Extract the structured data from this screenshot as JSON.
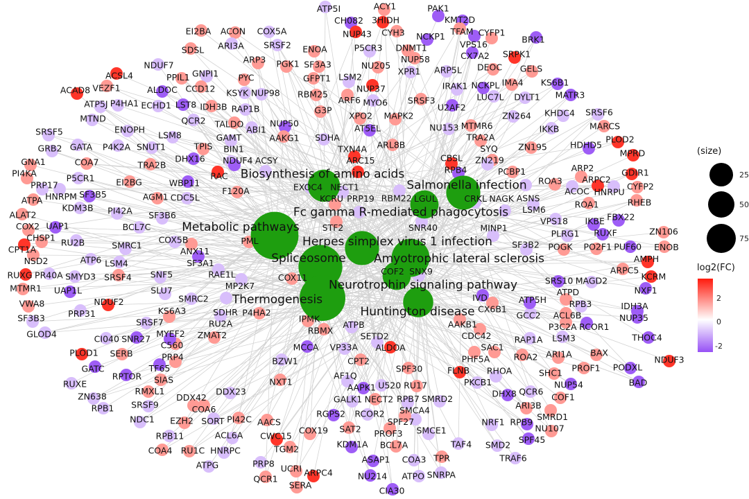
{
  "legend": {
    "size_title": "(size)",
    "size_values": [
      "25",
      "50",
      "75"
    ],
    "color_title": "log2(FC)",
    "color_ticks": [
      "2",
      "0",
      "-2"
    ],
    "color_low": "#9650F5",
    "color_mid": "#FFFFFF",
    "color_high": "#FF1A0D"
  },
  "colors": {
    "edge": "#D3D3D3",
    "category_node": "#1E9E0F"
  },
  "categories": [
    {
      "label": "Biosynthesis of amino acids",
      "size": 40
    },
    {
      "label": "Salmonella infection",
      "size": 45
    },
    {
      "label": "Fc gamma R-mediated phagocytosis",
      "size": 30
    },
    {
      "label": "Metabolic pathways",
      "size": 80
    },
    {
      "label": "Herpes simplex virus 1 infection",
      "size": 45
    },
    {
      "label": "Spliceosome",
      "size": 70
    },
    {
      "label": "Amyotrophic lateral sclerosis",
      "size": 55
    },
    {
      "label": "Neurotrophin signaling pathway",
      "size": 30
    },
    {
      "label": "Thermogenesis",
      "size": 75
    },
    {
      "label": "Huntington disease",
      "size": 35
    }
  ],
  "genes": [
    {
      "label": "ATP5I",
      "fc": -1
    },
    {
      "label": "ACY1",
      "fc": 1.5
    },
    {
      "label": "CH082",
      "fc": -2.5
    },
    {
      "label": "3HIDH",
      "fc": 3
    },
    {
      "label": "PAK1",
      "fc": -2.5
    },
    {
      "label": "KMT2D",
      "fc": -2.5
    },
    {
      "label": "TFAM",
      "fc": 1.5
    },
    {
      "label": "VPS16",
      "fc": -2.5
    },
    {
      "label": "CYH3",
      "fc": 1.5
    },
    {
      "label": "NUP43",
      "fc": 3
    },
    {
      "label": "P5CR3",
      "fc": -1
    },
    {
      "label": "DNMT1",
      "fc": 1.5
    },
    {
      "label": "ENOA",
      "fc": 1.5
    },
    {
      "label": "ACON",
      "fc": 1.5
    },
    {
      "label": "COX5A",
      "fc": -1
    },
    {
      "label": "SRSF2",
      "fc": -1
    },
    {
      "label": "EI2BA",
      "fc": 1.5
    },
    {
      "label": "SDSL",
      "fc": 1.5
    },
    {
      "label": "ARI3A",
      "fc": -1
    },
    {
      "label": "ARP3",
      "fc": 1.5
    },
    {
      "label": "PGK1",
      "fc": 1.5
    },
    {
      "label": "SF3A3",
      "fc": 1.5
    },
    {
      "label": "NCKP1",
      "fc": -2.5
    },
    {
      "label": "NUP58",
      "fc": 1.5
    },
    {
      "label": "NU205",
      "fc": 1.5
    },
    {
      "label": "CX7A2",
      "fc": -2.5
    },
    {
      "label": "CYFP1",
      "fc": 1.5
    },
    {
      "label": "BRK1",
      "fc": -2.5
    },
    {
      "label": "SRPK1",
      "fc": 3
    },
    {
      "label": "GELS",
      "fc": 1.5
    },
    {
      "label": "DEOC",
      "fc": 1.5
    },
    {
      "label": "ARP5L",
      "fc": -1
    },
    {
      "label": "XPR1",
      "fc": -1
    },
    {
      "label": "GFPT1",
      "fc": 1.5
    },
    {
      "label": "NDUF7",
      "fc": -1
    },
    {
      "label": "PPIL1",
      "fc": 1.5
    },
    {
      "label": "ACSL4",
      "fc": 3
    },
    {
      "label": "ALDOC",
      "fc": -2.5
    },
    {
      "label": "GNPI1",
      "fc": -1
    },
    {
      "label": "PYC",
      "fc": 1.5
    },
    {
      "label": "NUP98",
      "fc": -1
    },
    {
      "label": "RBM25",
      "fc": 1.5
    },
    {
      "label": "LSM2",
      "fc": -1
    },
    {
      "label": "NUP37",
      "fc": 3
    },
    {
      "label": "ARF6",
      "fc": 1.5
    },
    {
      "label": "MYO6",
      "fc": -1
    },
    {
      "label": "IRAK1",
      "fc": -1
    },
    {
      "label": "NCKPL",
      "fc": -2.5
    },
    {
      "label": "IMA4",
      "fc": 1.5
    },
    {
      "label": "KS6B1",
      "fc": -2.5
    },
    {
      "label": "DYLT1",
      "fc": -1
    },
    {
      "label": "MATR3",
      "fc": -2.5
    },
    {
      "label": "LUC7L",
      "fc": -1
    },
    {
      "label": "SRSF3",
      "fc": 1.5
    },
    {
      "label": "U2AF2",
      "fc": -2.5
    },
    {
      "label": "MAPK2",
      "fc": 1.5
    },
    {
      "label": "XPO2",
      "fc": 1.5
    },
    {
      "label": "AT5EL",
      "fc": -2.5
    },
    {
      "label": "G3P",
      "fc": 1.5
    },
    {
      "label": "RAP1B",
      "fc": -1
    },
    {
      "label": "KSYK",
      "fc": -1
    },
    {
      "label": "IDH3B",
      "fc": 1.5
    },
    {
      "label": "CCD12",
      "fc": 1.5
    },
    {
      "label": "VEZF1",
      "fc": 1.5
    },
    {
      "label": "ACAD8",
      "fc": 3
    },
    {
      "label": "ATP5J",
      "fc": -1
    },
    {
      "label": "P4HA1",
      "fc": -1
    },
    {
      "label": "MTND",
      "fc": -1
    },
    {
      "label": "ECHD1",
      "fc": -1
    },
    {
      "label": "LST8",
      "fc": -2.5
    },
    {
      "label": "QCR2",
      "fc": -1
    },
    {
      "label": "TALDO",
      "fc": 1.5
    },
    {
      "label": "ABI1",
      "fc": -1
    },
    {
      "label": "NUP50",
      "fc": -2.5
    },
    {
      "label": "KHDC4",
      "fc": -1
    },
    {
      "label": "SRSF6",
      "fc": -1
    },
    {
      "label": "NU153",
      "fc": -1
    },
    {
      "label": "ZN264",
      "fc": -1
    },
    {
      "label": "MARCS",
      "fc": 1.5
    },
    {
      "label": "IKKB",
      "fc": -1
    },
    {
      "label": "MTMR6",
      "fc": 1.5
    },
    {
      "label": "TRA2A",
      "fc": 1.5
    },
    {
      "label": "HDHD5",
      "fc": -2.5
    },
    {
      "label": "PLOD2",
      "fc": 3
    },
    {
      "label": "MPRD",
      "fc": 3
    },
    {
      "label": "SYQ",
      "fc": 1.5
    },
    {
      "label": "ZN195",
      "fc": 1.5
    },
    {
      "label": "ARL8B",
      "fc": 1.5
    },
    {
      "label": "SDHA",
      "fc": -1
    },
    {
      "label": "AAKG1",
      "fc": 1.5
    },
    {
      "label": "GAMT",
      "fc": -1
    },
    {
      "label": "BIN1",
      "fc": -1
    },
    {
      "label": "TPIS",
      "fc": 1.5
    },
    {
      "label": "LSM8",
      "fc": -1
    },
    {
      "label": "ENOPH",
      "fc": -1
    },
    {
      "label": "SNUT1",
      "fc": -1
    },
    {
      "label": "DHX16",
      "fc": -2.5
    },
    {
      "label": "TRA2B",
      "fc": 1.5
    },
    {
      "label": "P4K2A",
      "fc": -1
    },
    {
      "label": "GATA",
      "fc": -1
    },
    {
      "label": "SRSF5",
      "fc": -1
    },
    {
      "label": "GRB2",
      "fc": -1
    },
    {
      "label": "GNA1",
      "fc": 1.5
    },
    {
      "label": "COA7",
      "fc": 1.5
    },
    {
      "label": "PI4KA",
      "fc": 1.5
    },
    {
      "label": "P5CR1",
      "fc": -1
    },
    {
      "label": "EI2BG",
      "fc": 1.5
    },
    {
      "label": "WBP11",
      "fc": -2.5
    },
    {
      "label": "RAC",
      "fc": 3
    },
    {
      "label": "F120A",
      "fc": 1.5
    },
    {
      "label": "NDUF4",
      "fc": -2.5
    },
    {
      "label": "ACSY",
      "fc": -1
    },
    {
      "label": "TXN4A",
      "fc": 3
    },
    {
      "label": "ARC15",
      "fc": 3
    },
    {
      "label": "CBSL",
      "fc": 3
    },
    {
      "label": "RPB4",
      "fc": -2.5
    },
    {
      "label": "ZN219",
      "fc": -1
    },
    {
      "label": "PCBP1",
      "fc": 1.5
    },
    {
      "label": "ROA3",
      "fc": 1.5
    },
    {
      "label": "ARP2",
      "fc": 1.5
    },
    {
      "label": "ARPC2",
      "fc": 3
    },
    {
      "label": "GDIR1",
      "fc": 3
    },
    {
      "label": "CYFP2",
      "fc": 1.5
    },
    {
      "label": "HNRPU",
      "fc": -1
    },
    {
      "label": "ACOC",
      "fc": -1
    },
    {
      "label": "ASNS",
      "fc": -1
    },
    {
      "label": "EXOC4",
      "fc": -1
    },
    {
      "label": "NECT1",
      "fc": -1
    },
    {
      "label": "RBM22",
      "fc": -1
    },
    {
      "label": "KCRU",
      "fc": 1.5
    },
    {
      "label": "PRP19",
      "fc": -1
    },
    {
      "label": "LGUL",
      "fc": -1
    },
    {
      "label": "CRKL",
      "fc": -1
    },
    {
      "label": "LSM6",
      "fc": -1
    },
    {
      "label": "ROA1",
      "fc": 1.5
    },
    {
      "label": "RHEB",
      "fc": 1.5
    },
    {
      "label": "FBX22",
      "fc": -2.5
    },
    {
      "label": "NAGK",
      "fc": -1
    },
    {
      "label": "PRP17",
      "fc": -1
    },
    {
      "label": "AGM1",
      "fc": 1.5
    },
    {
      "label": "CDC5L",
      "fc": -1
    },
    {
      "label": "SF3B5",
      "fc": -2.5
    },
    {
      "label": "ATPA",
      "fc": 1.5
    },
    {
      "label": "HNRPM",
      "fc": -1
    },
    {
      "label": "ALAT2",
      "fc": 1.5
    },
    {
      "label": "KDM3B",
      "fc": -1
    },
    {
      "label": "PI42A",
      "fc": -1
    },
    {
      "label": "SF3B6",
      "fc": -1
    },
    {
      "label": "BCL7C",
      "fc": -1
    },
    {
      "label": "UAP1",
      "fc": -2.5
    },
    {
      "label": "COX2",
      "fc": 1.5
    },
    {
      "label": "STF2",
      "fc": 1.5
    },
    {
      "label": "SNR40",
      "fc": -1
    },
    {
      "label": "VPS18",
      "fc": -1
    },
    {
      "label": "IKBE",
      "fc": -2.5
    },
    {
      "label": "MINP1",
      "fc": -1
    },
    {
      "label": "PLRG1",
      "fc": -1
    },
    {
      "label": "RUXF",
      "fc": -2.5
    },
    {
      "label": "ZN106",
      "fc": 1.5
    },
    {
      "label": "PUF60",
      "fc": -2.5
    },
    {
      "label": "ENOB",
      "fc": 1.5
    },
    {
      "label": "CHSP1",
      "fc": 1.5
    },
    {
      "label": "RU2B",
      "fc": -1
    },
    {
      "label": "SMRC1",
      "fc": -1
    },
    {
      "label": "COX5B",
      "fc": -1
    },
    {
      "label": "ANX11",
      "fc": 1.5
    },
    {
      "label": "PML",
      "fc": 1.5
    },
    {
      "label": "CPT1A",
      "fc": 3
    },
    {
      "label": "NSD2",
      "fc": 1.5
    },
    {
      "label": "ATP6",
      "fc": -1
    },
    {
      "label": "LSM4",
      "fc": -1
    },
    {
      "label": "SF3A1",
      "fc": -2.5
    },
    {
      "label": "SF3B2",
      "fc": -1
    },
    {
      "label": "POGK",
      "fc": 1.5
    },
    {
      "label": "PO2F1",
      "fc": 1.5
    },
    {
      "label": "AMPH",
      "fc": 3
    },
    {
      "label": "ARPC5",
      "fc": 1.5
    },
    {
      "label": "KCRM",
      "fc": 3
    },
    {
      "label": "MAGD2",
      "fc": -1
    },
    {
      "label": "SRS10",
      "fc": -2.5
    },
    {
      "label": "NXF1",
      "fc": -2.5
    },
    {
      "label": "IDH3A",
      "fc": -2.5
    },
    {
      "label": "ATPD",
      "fc": 1.5
    },
    {
      "label": "RPB3",
      "fc": -1
    },
    {
      "label": "NUP35",
      "fc": -2.5
    },
    {
      "label": "ACL6B",
      "fc": 1.5
    },
    {
      "label": "THOC4",
      "fc": -2.5
    },
    {
      "label": "RCOR1",
      "fc": -2.5
    },
    {
      "label": "P3C2A",
      "fc": 1.5
    },
    {
      "label": "GCC2",
      "fc": -1
    },
    {
      "label": "ATP5H",
      "fc": -2.5
    },
    {
      "label": "CX6B1",
      "fc": 1.5
    },
    {
      "label": "IVD",
      "fc": -2.5
    },
    {
      "label": "SNX9",
      "fc": -1
    },
    {
      "label": "COF2",
      "fc": 1.5
    },
    {
      "label": "CDC42",
      "fc": 1.5
    },
    {
      "label": "LSM3",
      "fc": -1
    },
    {
      "label": "RAP1A",
      "fc": -1
    },
    {
      "label": "ROA2",
      "fc": 1.5
    },
    {
      "label": "ARI1A",
      "fc": 1.5
    },
    {
      "label": "SAC1",
      "fc": 1.5
    },
    {
      "label": "BAX",
      "fc": 1.5
    },
    {
      "label": "NDUF3",
      "fc": 3
    },
    {
      "label": "PODXL",
      "fc": -2.5
    },
    {
      "label": "PROF1",
      "fc": 1.5
    },
    {
      "label": "BAD",
      "fc": -2.5
    },
    {
      "label": "SHC1",
      "fc": 1.5
    },
    {
      "label": "PHF5A",
      "fc": 1.5
    },
    {
      "label": "FLNB",
      "fc": 3
    },
    {
      "label": "RHOA",
      "fc": -1
    },
    {
      "label": "PKCB1",
      "fc": -1
    },
    {
      "label": "NUP54",
      "fc": -2.5
    },
    {
      "label": "COF1",
      "fc": 1.5
    },
    {
      "label": "QCR6",
      "fc": -1
    },
    {
      "label": "DHX8",
      "fc": -2.5
    },
    {
      "label": "ARI3B",
      "fc": 1.5
    },
    {
      "label": "SMRD1",
      "fc": 1.5
    },
    {
      "label": "NU107",
      "fc": 1.5
    },
    {
      "label": "NRF1",
      "fc": -1
    },
    {
      "label": "RPB9",
      "fc": -2.5
    },
    {
      "label": "SPF45",
      "fc": -2.5
    },
    {
      "label": "SMD2",
      "fc": -1
    },
    {
      "label": "TRAF6",
      "fc": -1
    },
    {
      "label": "TAF4",
      "fc": -1
    },
    {
      "label": "TPR",
      "fc": 1.5
    },
    {
      "label": "SNRPA",
      "fc": -1
    },
    {
      "label": "SMCE1",
      "fc": -1
    },
    {
      "label": "SMCA4",
      "fc": -1
    },
    {
      "label": "SMRD2",
      "fc": -1
    },
    {
      "label": "RPB7",
      "fc": -1
    },
    {
      "label": "RU17",
      "fc": 1.5
    },
    {
      "label": "U520",
      "fc": -1
    },
    {
      "label": "SPF30",
      "fc": 1.5
    },
    {
      "label": "CPT2",
      "fc": 1.5
    },
    {
      "label": "AAKB1",
      "fc": 1.5
    },
    {
      "label": "ALDOA",
      "fc": 3
    },
    {
      "label": "SETD2",
      "fc": -1
    },
    {
      "label": "ATPB",
      "fc": -1
    },
    {
      "label": "VP33A",
      "fc": -1
    },
    {
      "label": "RBMX",
      "fc": 1.5
    },
    {
      "label": "IPMK",
      "fc": 1.5
    },
    {
      "label": "MCCA",
      "fc": -2.5
    },
    {
      "label": "BZW1",
      "fc": -1
    },
    {
      "label": "NXT1",
      "fc": 1.5
    },
    {
      "label": "AF1Q",
      "fc": -1
    },
    {
      "label": "AAPK1",
      "fc": -2.5
    },
    {
      "label": "GALK1",
      "fc": -1
    },
    {
      "label": "RGPS2",
      "fc": -2.5
    },
    {
      "label": "RCOR2",
      "fc": -1
    },
    {
      "label": "NECT2",
      "fc": 1.5
    },
    {
      "label": "SPF27",
      "fc": 1.5
    },
    {
      "label": "SAT2",
      "fc": 1.5
    },
    {
      "label": "PROF3",
      "fc": 1.5
    },
    {
      "label": "COX19",
      "fc": 1.5
    },
    {
      "label": "KDM1A",
      "fc": -2.5
    },
    {
      "label": "BCL7A",
      "fc": 1.5
    },
    {
      "label": "ASAP1",
      "fc": -2.5
    },
    {
      "label": "COA3",
      "fc": -1
    },
    {
      "label": "ATPO",
      "fc": -1
    },
    {
      "label": "NU214",
      "fc": -2.5
    },
    {
      "label": "CIA30",
      "fc": -2.5
    },
    {
      "label": "TGM2",
      "fc": 1.5
    },
    {
      "label": "ARPC4",
      "fc": 3
    },
    {
      "label": "UCRI",
      "fc": 1.5
    },
    {
      "label": "SERA",
      "fc": 1.5
    },
    {
      "label": "DDX23",
      "fc": -1
    },
    {
      "label": "DDX42",
      "fc": 1.5
    },
    {
      "label": "SORT",
      "fc": -1
    },
    {
      "label": "COA6",
      "fc": 1.5
    },
    {
      "label": "PI42C",
      "fc": 1.5
    },
    {
      "label": "AACS",
      "fc": 1.5
    },
    {
      "label": "CWC15",
      "fc": 3
    },
    {
      "label": "ACL6A",
      "fc": -1
    },
    {
      "label": "HNRPC",
      "fc": -1
    },
    {
      "label": "ATPG",
      "fc": -1
    },
    {
      "label": "RU1C",
      "fc": 1.5
    },
    {
      "label": "RPB11",
      "fc": -1
    },
    {
      "label": "COA4",
      "fc": 1.5
    },
    {
      "label": "PRP8",
      "fc": -1
    },
    {
      "label": "QCR1",
      "fc": 1.5
    },
    {
      "label": "EZH2",
      "fc": 1.5
    },
    {
      "label": "NDC1",
      "fc": -1
    },
    {
      "label": "RPB1",
      "fc": -1
    },
    {
      "label": "SRSF9",
      "fc": -1
    },
    {
      "label": "RMXL1",
      "fc": 1.5
    },
    {
      "label": "ZN638",
      "fc": -1
    },
    {
      "label": "RUXE",
      "fc": -1
    },
    {
      "label": "RPTOR",
      "fc": -2.5
    },
    {
      "label": "GATC",
      "fc": -2.5
    },
    {
      "label": "SIAS",
      "fc": 1.5
    },
    {
      "label": "TF65",
      "fc": -2.5
    },
    {
      "label": "PRP4",
      "fc": 1.5
    },
    {
      "label": "PLOD1",
      "fc": 3
    },
    {
      "label": "SERB",
      "fc": 1.5
    },
    {
      "label": "C560",
      "fc": 1.5
    },
    {
      "label": "CI040",
      "fc": -1
    },
    {
      "label": "SNR27",
      "fc": -2.5
    },
    {
      "label": "SRSF7",
      "fc": -1
    },
    {
      "label": "MYEF2",
      "fc": -2.5
    },
    {
      "label": "ZMAT2",
      "fc": 1.5
    },
    {
      "label": "KS6A3",
      "fc": 1.5
    },
    {
      "label": "RU2A",
      "fc": -1
    },
    {
      "label": "P4HA2",
      "fc": 1.5
    },
    {
      "label": "SMRC2",
      "fc": -1
    },
    {
      "label": "SDHR",
      "fc": -1
    },
    {
      "label": "GLOD4",
      "fc": -1
    },
    {
      "label": "PRP31",
      "fc": -1
    },
    {
      "label": "SF3B3",
      "fc": -1
    },
    {
      "label": "VWA8",
      "fc": 1.5
    },
    {
      "label": "NDUF2",
      "fc": 3
    },
    {
      "label": "UAP1L",
      "fc": -2.5
    },
    {
      "label": "MTMR1",
      "fc": 1.5
    },
    {
      "label": "SMYD3",
      "fc": -1
    },
    {
      "label": "RUXG",
      "fc": 3
    },
    {
      "label": "PR40A",
      "fc": -1
    },
    {
      "label": "SRSF4",
      "fc": 1.5
    },
    {
      "label": "SLU7",
      "fc": -1
    },
    {
      "label": "SNF5",
      "fc": -1
    },
    {
      "label": "MP2K7",
      "fc": -1
    },
    {
      "label": "RAE1L",
      "fc": -1
    },
    {
      "label": "COX11",
      "fc": 1.5
    }
  ]
}
